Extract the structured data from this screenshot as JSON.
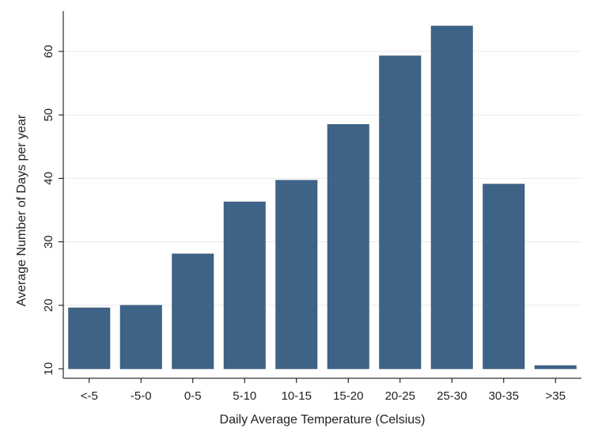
{
  "chart_data": {
    "type": "bar",
    "title": "",
    "xlabel": "Daily Average Temperature (Celsius)",
    "ylabel": "Average Number of Days per year",
    "categories": [
      "<-5",
      "-5-0",
      "0-5",
      "5-10",
      "10-15",
      "15-20",
      "20-25",
      "25-30",
      "30-35",
      ">35"
    ],
    "values": [
      19.6,
      20.0,
      28.1,
      36.3,
      39.7,
      48.5,
      59.3,
      64.0,
      39.1,
      10.5
    ],
    "ylim": [
      10,
      65
    ],
    "yticks": [
      10,
      20,
      30,
      40,
      50,
      60
    ],
    "grid": true,
    "bar_color": "#3e6387",
    "grid_color": "#eaeaea",
    "axis_color": "#000000"
  }
}
